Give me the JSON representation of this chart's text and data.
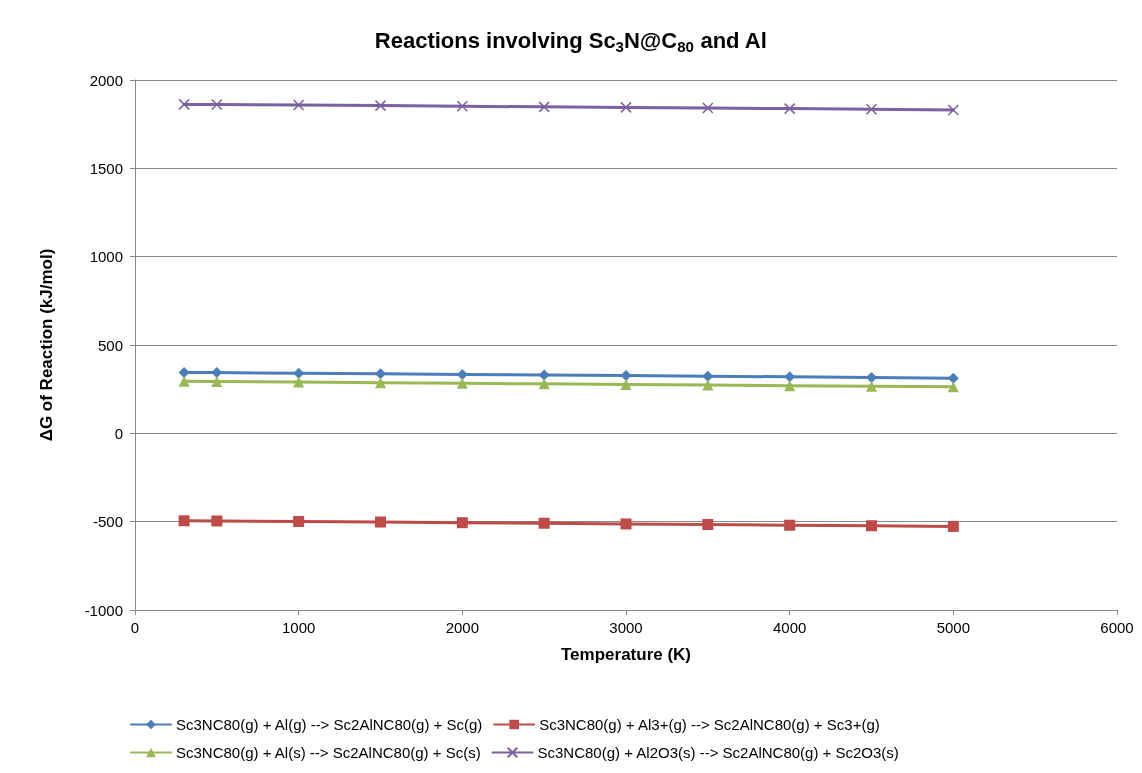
{
  "chart_data": {
    "type": "line",
    "title": "Reactions involving Sc$_{3}$N@C$_{80}$ and Al",
    "xlabel": "Temperature (K)",
    "ylabel": "ΔG of Reaction (kJ/mol)",
    "x": [
      300,
      500,
      1000,
      1500,
      2000,
      2500,
      3000,
      3500,
      4000,
      4500,
      5000
    ],
    "series": [
      {
        "name": "Sc3NC80(g) + Al(g) --> Sc2AlNC80(g) + Sc(g)",
        "color": "#4a7ebb",
        "marker": "diamond",
        "values": [
          345,
          344,
          340,
          337,
          333,
          330,
          327,
          323,
          320,
          316,
          312
        ]
      },
      {
        "name": "Sc3NC80(g) + Al3+(g) --> Sc2AlNC80(g) + Sc3+(g)",
        "color": "#be4b48",
        "marker": "square",
        "values": [
          -495,
          -496,
          -499,
          -502,
          -506,
          -509,
          -513,
          -516,
          -520,
          -523,
          -527
        ]
      },
      {
        "name": "Sc3NC80(g) + Al(s) --> Sc2AlNC80(g) + Sc(s)",
        "color": "#98b954",
        "marker": "triangle",
        "values": [
          295,
          294,
          290,
          287,
          283,
          280,
          276,
          273,
          270,
          266,
          263
        ]
      },
      {
        "name": "Sc3NC80(g) + Al2O3(s) --> Sc2AlNC80(g) + Sc2O3(s)",
        "color": "#7d60a0",
        "marker": "cross",
        "values": [
          1862,
          1861,
          1858,
          1855,
          1851,
          1848,
          1845,
          1841,
          1838,
          1834,
          1830
        ]
      }
    ],
    "xlim": [
      0,
      6000
    ],
    "xticks": [
      0,
      1000,
      2000,
      3000,
      4000,
      5000,
      6000
    ],
    "ylim": [
      -1000,
      2000
    ],
    "yticks": [
      -1000,
      -500,
      0,
      500,
      1000,
      1500,
      2000
    ],
    "grid": "y",
    "legend": "bottom",
    "line_style": "solid"
  }
}
